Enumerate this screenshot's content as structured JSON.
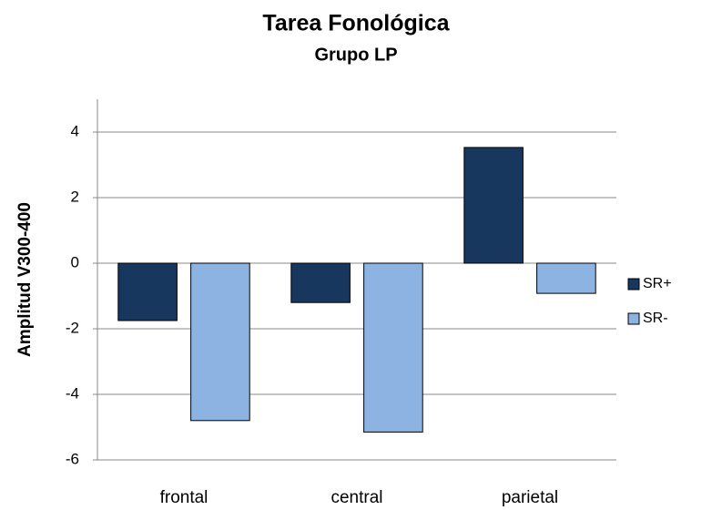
{
  "chart_data": {
    "type": "bar",
    "title": "Tarea Fonológica",
    "subtitle": "Grupo LP",
    "y_label": "Amplitud V300-400",
    "categories": [
      "frontal",
      "central",
      "parietal"
    ],
    "series": [
      {
        "name": "SR+",
        "color": "#17375e",
        "values": [
          -1.75,
          -1.2,
          3.53
        ]
      },
      {
        "name": "SR-",
        "color": "#8db3e2",
        "values": [
          -4.8,
          -5.15,
          -0.92
        ]
      }
    ],
    "ylim": [
      -6,
      5
    ],
    "yticks": [
      -6,
      -4,
      -2,
      0,
      2,
      4
    ],
    "grid": true,
    "legend": "right"
  }
}
